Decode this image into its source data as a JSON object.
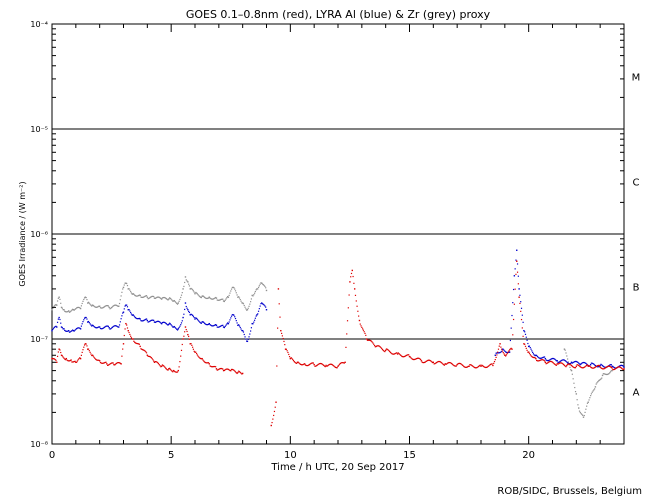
{
  "chart_data": {
    "type": "scatter",
    "title": "GOES 0.1–0.8nm (red), LYRA Al (blue) & Zr (grey) proxy",
    "xlabel": "Time / h UTC, 20 Sep 2017",
    "ylabel": "GOES Irradiance / (W m⁻²)",
    "xlim": [
      0,
      24
    ],
    "ylim": [
      1e-08,
      0.0001
    ],
    "yscale": "log",
    "x_ticks": [
      {
        "value": 0,
        "label": "0"
      },
      {
        "value": 5,
        "label": "5"
      },
      {
        "value": 10,
        "label": "10"
      },
      {
        "value": 15,
        "label": "15"
      },
      {
        "value": 20,
        "label": "20"
      }
    ],
    "y_ticks": [
      {
        "value": 1e-08,
        "label": "10⁻⁸"
      },
      {
        "value": 1e-07,
        "label": "10⁻⁷"
      },
      {
        "value": 1e-06,
        "label": "10⁻⁶"
      },
      {
        "value": 1e-05,
        "label": "10⁻⁵"
      },
      {
        "value": 0.0001,
        "label": "10⁻⁴"
      }
    ],
    "flare_class_lines": [
      1e-07,
      1e-06,
      1e-05
    ],
    "flare_class_labels": [
      {
        "label": "A",
        "value": 3.16e-08
      },
      {
        "label": "B",
        "value": 3.16e-07
      },
      {
        "label": "C",
        "value": 3.16e-06
      },
      {
        "label": "M",
        "value": 3.16e-05
      }
    ],
    "series": [
      {
        "color": "#909090",
        "x": [
          0.0,
          0.2,
          0.3,
          0.4,
          0.5,
          0.7,
          0.9,
          1.2,
          1.4,
          1.5,
          1.7,
          2.0,
          2.4,
          2.8,
          3.0,
          3.1,
          3.2,
          3.4,
          3.7,
          4.0,
          4.3,
          4.6,
          4.9,
          5.1,
          5.3,
          5.5,
          5.6,
          5.7,
          5.8,
          6.0,
          6.3,
          6.6,
          6.9,
          7.2,
          7.4,
          7.6,
          7.8,
          8.0,
          8.2,
          8.4,
          8.6,
          8.8,
          9.0,
          21.5,
          21.8,
          22.0,
          22.1,
          22.3,
          22.5,
          22.8,
          23.1,
          23.5
        ],
        "y": [
          1.9e-07,
          2.1e-07,
          2.5e-07,
          2e-07,
          1.9e-07,
          1.85e-07,
          1.9e-07,
          1.95e-07,
          2.5e-07,
          2.2e-07,
          2.1e-07,
          2.05e-07,
          2e-07,
          2.05e-07,
          3.1e-07,
          3.4e-07,
          3e-07,
          2.7e-07,
          2.6e-07,
          2.5e-07,
          2.45e-07,
          2.4e-07,
          2.4e-07,
          2.3e-07,
          2.2e-07,
          3e-07,
          3.9e-07,
          3.5e-07,
          3e-07,
          2.7e-07,
          2.55e-07,
          2.5e-07,
          2.45e-07,
          2.3e-07,
          2.5e-07,
          3.1e-07,
          2.5e-07,
          2.2e-07,
          1.9e-07,
          2.6e-07,
          3e-07,
          3.4e-07,
          2.9e-07,
          8e-08,
          5e-08,
          3e-08,
          2.2e-08,
          1.8e-08,
          2.5e-08,
          3.5e-08,
          4.5e-08,
          5e-08
        ]
      },
      {
        "color": "#0000cc",
        "x": [
          0.0,
          0.2,
          0.3,
          0.4,
          0.5,
          0.7,
          0.9,
          1.2,
          1.4,
          1.5,
          1.7,
          2.0,
          2.4,
          2.8,
          3.0,
          3.1,
          3.2,
          3.4,
          3.7,
          4.0,
          4.3,
          4.6,
          4.9,
          5.1,
          5.3,
          5.5,
          5.6,
          5.7,
          5.8,
          6.0,
          6.3,
          6.6,
          6.9,
          7.2,
          7.4,
          7.6,
          7.8,
          8.0,
          8.2,
          8.4,
          8.6,
          8.8,
          9.0,
          18.6,
          18.9,
          19.2,
          19.4,
          19.5,
          19.6,
          19.8,
          20.0,
          20.3,
          20.7,
          21.2,
          21.8,
          22.2,
          22.6,
          23.0,
          23.5,
          24.0
        ],
        "y": [
          1.2e-07,
          1.3e-07,
          1.6e-07,
          1.3e-07,
          1.25e-07,
          1.2e-07,
          1.2e-07,
          1.25e-07,
          1.6e-07,
          1.45e-07,
          1.35e-07,
          1.3e-07,
          1.28e-07,
          1.3e-07,
          1.8e-07,
          2.1e-07,
          1.9e-07,
          1.7e-07,
          1.55e-07,
          1.5e-07,
          1.45e-07,
          1.4e-07,
          1.38e-07,
          1.3e-07,
          1.25e-07,
          1.6e-07,
          2.2e-07,
          1.9e-07,
          1.7e-07,
          1.55e-07,
          1.45e-07,
          1.4e-07,
          1.35e-07,
          1.3e-07,
          1.4e-07,
          1.7e-07,
          1.35e-07,
          1.2e-07,
          9.5e-08,
          1.4e-07,
          1.7e-07,
          2.2e-07,
          1.9e-07,
          7e-08,
          8e-08,
          7.5e-08,
          4e-07,
          7e-07,
          3e-07,
          1.2e-07,
          8.5e-08,
          7e-08,
          6.5e-08,
          6.2e-08,
          6e-08,
          5.8e-08,
          5.7e-08,
          5.6e-08,
          5.5e-08,
          5.4e-08
        ]
      },
      {
        "color": "#dd0000",
        "x": [
          0.0,
          0.2,
          0.3,
          0.4,
          0.6,
          0.8,
          1.0,
          1.2,
          1.4,
          1.5,
          1.7,
          2.0,
          2.3,
          2.6,
          2.9,
          3.0,
          3.1,
          3.2,
          3.4,
          3.7,
          4.0,
          4.3,
          4.6,
          4.9,
          5.1,
          5.3,
          5.5,
          5.6,
          5.7,
          5.8,
          6.0,
          6.3,
          6.6,
          6.9,
          7.2,
          7.5,
          7.8,
          8.0,
          9.2,
          9.4,
          9.5,
          9.6,
          9.8,
          10.0,
          10.3,
          10.6,
          11.0,
          11.5,
          12.0,
          12.3,
          12.5,
          12.6,
          12.7,
          12.9,
          13.2,
          13.6,
          14.0,
          14.5,
          15.0,
          15.5,
          16.0,
          16.5,
          17.0,
          17.5,
          18.0,
          18.5,
          18.8,
          19.0,
          19.3,
          19.5,
          19.6,
          19.8,
          20.0,
          20.3,
          20.7,
          21.2,
          21.6,
          22.0,
          22.5,
          23.0,
          23.5,
          24.0
        ],
        "y": [
          6.5e-08,
          6e-08,
          8e-08,
          7e-08,
          6.5e-08,
          6.3e-08,
          6e-08,
          6.5e-08,
          9e-08,
          8e-08,
          7e-08,
          6.2e-08,
          5.8e-08,
          5.7e-08,
          5.8e-08,
          9e-08,
          1.4e-07,
          1.2e-07,
          1e-07,
          8.5e-08,
          7e-08,
          6e-08,
          5.5e-08,
          5.2e-08,
          5e-08,
          5e-08,
          1e-07,
          1.3e-07,
          1.1e-07,
          9e-08,
          7.5e-08,
          6.5e-08,
          5.8e-08,
          5.2e-08,
          5e-08,
          5e-08,
          4.8e-08,
          4.7e-08,
          1.5e-08,
          2.5e-08,
          3e-07,
          1.2e-07,
          8e-08,
          6.5e-08,
          6e-08,
          5.8e-08,
          5.7e-08,
          5.6e-08,
          5.5e-08,
          6e-08,
          3.5e-07,
          4.5e-07,
          3e-07,
          1.5e-07,
          1e-07,
          8.5e-08,
          7.8e-08,
          7.2e-08,
          6.8e-08,
          6.2e-08,
          6e-08,
          5.8e-08,
          5.7e-08,
          5.5e-08,
          5.5e-08,
          5.6e-08,
          9e-08,
          7e-08,
          8e-08,
          5.5e-07,
          2.5e-07,
          9e-08,
          7.5e-08,
          6.5e-08,
          6e-08,
          5.8e-08,
          5.6e-08,
          5.5e-08,
          5.5e-08,
          5.4e-08,
          5.3e-08,
          5.2e-08
        ]
      }
    ],
    "credit": "ROB/SIDC, Brussels, Belgium"
  }
}
